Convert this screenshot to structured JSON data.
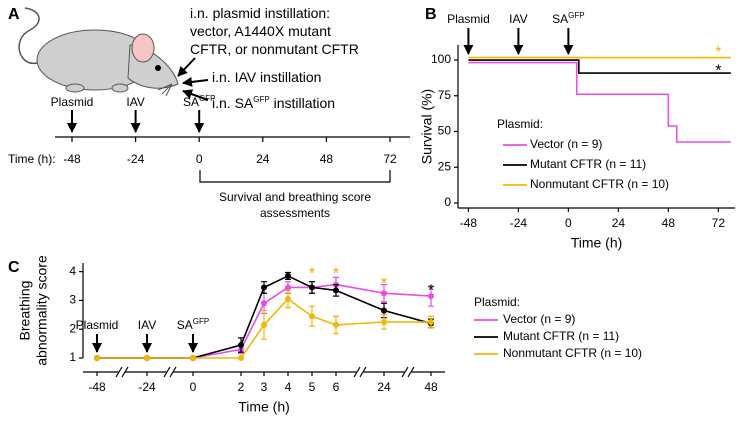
{
  "panel_a": {
    "label": "A",
    "notes": [
      {
        "label": "i.n. plasmid instillation:"
      },
      {
        "label": "vector, A1440X mutant"
      },
      {
        "label": "CFTR, or nonmutant CFTR"
      },
      {
        "label": "i.n. IAV instillation"
      },
      {
        "label": "i.n. SA",
        "sup": "GFP",
        "after": " instillation"
      }
    ],
    "events": [
      {
        "label": "Plasmid"
      },
      {
        "label": "IAV"
      },
      {
        "label": "SA",
        "sup": "GFP"
      }
    ],
    "time_label": "Time (h):",
    "ticks": [
      -48,
      -24,
      0,
      24,
      48,
      72
    ],
    "bracket_label": [
      "Survival and breathing score",
      "assessments"
    ]
  },
  "chart_data": [
    {
      "type": "step",
      "panel": "B",
      "xlabel": "Time (h)",
      "ylabel": "Survival (%)",
      "xlim": [
        -53,
        80
      ],
      "ylim": [
        -3.5,
        110.5
      ],
      "xticks": [
        -48,
        -24,
        0,
        24,
        48,
        72
      ],
      "yticks": [
        0,
        25,
        50,
        75,
        100
      ],
      "events": [
        {
          "label": "Plasmid",
          "x": -48
        },
        {
          "label": "IAV",
          "x": -24
        },
        {
          "label": "SA",
          "sup": "GFP",
          "x": 0
        }
      ],
      "legend_title": "Plasmid:",
      "series": [
        {
          "name": "Vector (n = 9)",
          "color": "#e84de8",
          "x": [
            -48,
            4,
            48,
            52,
            78
          ],
          "values": [
            100,
            77.8,
            55.6,
            44.4,
            44.4
          ]
        },
        {
          "name": "Mutant CFTR (n = 11)",
          "color": "#000000",
          "x": [
            -48,
            5,
            78
          ],
          "values": [
            100,
            90.9,
            90.9
          ]
        },
        {
          "name": "Nonmutant CFTR (n = 10)",
          "color": "#f2b705",
          "x": [
            -48,
            78
          ],
          "values": [
            100,
            100
          ]
        }
      ],
      "annotations": [
        {
          "text": "*",
          "x": 72,
          "y": 108,
          "color": "#f2b705"
        },
        {
          "text": "*",
          "x": 72,
          "y": 95,
          "color": "#000000"
        }
      ]
    },
    {
      "type": "line",
      "panel": "C",
      "xlabel": "Time (h)",
      "ylabel": [
        "Breathing",
        "abnormality score"
      ],
      "categories": [
        "-48",
        "-24",
        "0",
        "2",
        "3",
        "4",
        "5",
        "6",
        "24",
        "48"
      ],
      "ylim": [
        1,
        4.3
      ],
      "yticks": [
        1,
        2,
        3,
        4
      ],
      "events": [
        {
          "label": "Plasmid",
          "x": "-48"
        },
        {
          "label": "IAV",
          "x": "-24"
        },
        {
          "label": "SA",
          "sup": "GFP",
          "x": "0"
        }
      ],
      "legend_title": "Plasmid:",
      "series": [
        {
          "name": "Vector (n = 9)",
          "color": "#e84de8",
          "values": [
            1,
            1,
            1,
            1.3,
            2.9,
            3.45,
            3.45,
            3.55,
            3.25,
            3.15
          ],
          "errors": [
            0,
            0,
            0,
            0.15,
            0.35,
            0.2,
            0.2,
            0.25,
            0.3,
            0.35
          ]
        },
        {
          "name": "Mutant CFTR (n = 11)",
          "color": "#000000",
          "values": [
            1,
            1,
            1,
            1.45,
            3.45,
            3.85,
            3.45,
            3.35,
            2.65,
            2.2
          ],
          "errors": [
            0,
            0,
            0,
            0.25,
            0.2,
            0.12,
            0.2,
            0.2,
            0.25,
            0.15
          ]
        },
        {
          "name": "Nonmutant CFTR (n = 10)",
          "color": "#f2b705",
          "values": [
            1,
            1,
            1,
            1,
            2.15,
            3.05,
            2.45,
            2.15,
            2.25,
            2.25
          ],
          "errors": [
            0,
            0,
            0,
            0,
            0.5,
            0.3,
            0.35,
            0.3,
            0.25,
            0.2
          ]
        }
      ],
      "annotations": [
        {
          "text": "*",
          "x": "5",
          "y": 4.05,
          "color": "#f2a000"
        },
        {
          "text": "*",
          "x": "6",
          "y": 4.05,
          "color": "#f2a000"
        },
        {
          "text": "*",
          "x": "24",
          "y": 3.7,
          "color": "#f2a000"
        },
        {
          "text": "*",
          "x": "48",
          "y": 3.45,
          "color": "#000000"
        }
      ]
    }
  ]
}
